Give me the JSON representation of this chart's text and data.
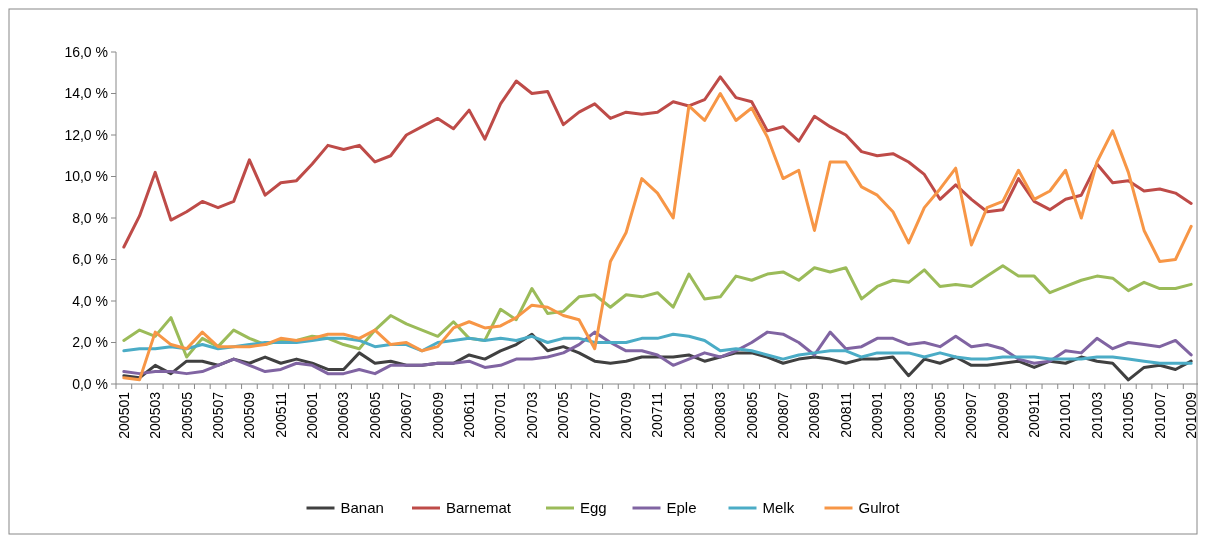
{
  "chart_data": {
    "type": "line",
    "categories": [
      "200501",
      null,
      "200503",
      null,
      "200505",
      null,
      "200507",
      null,
      "200509",
      null,
      "200511",
      null,
      "200601",
      null,
      "200603",
      null,
      "200605",
      null,
      "200607",
      null,
      "200609",
      null,
      "200611",
      null,
      "200701",
      null,
      "200703",
      null,
      "200705",
      null,
      "200707",
      null,
      "200709",
      null,
      "200711",
      null,
      "200801",
      null,
      "200803",
      null,
      "200805",
      null,
      "200807",
      null,
      "200809",
      null,
      "200811",
      null,
      "200901",
      null,
      "200903",
      null,
      "200905",
      null,
      "200907",
      null,
      "200909",
      null,
      "200911",
      null,
      "201001",
      null,
      "201003",
      null,
      "201005",
      null,
      "201007",
      null,
      "201009"
    ],
    "series": [
      {
        "name": "Banan",
        "color": "#404040",
        "values": [
          0.4,
          0.3,
          0.9,
          0.5,
          1.1,
          1.1,
          0.9,
          1.2,
          1.0,
          1.3,
          1.0,
          1.2,
          1.0,
          0.7,
          0.7,
          1.5,
          1.0,
          1.1,
          0.9,
          0.9,
          1.0,
          1.0,
          1.4,
          1.2,
          1.6,
          1.9,
          2.4,
          1.6,
          1.8,
          1.5,
          1.1,
          1.0,
          1.1,
          1.3,
          1.3,
          1.3,
          1.4,
          1.1,
          1.3,
          1.5,
          1.5,
          1.3,
          1.0,
          1.2,
          1.3,
          1.2,
          1.0,
          1.2,
          1.2,
          1.3,
          0.4,
          1.2,
          1.0,
          1.3,
          0.9,
          0.9,
          1.0,
          1.1,
          0.8,
          1.1,
          1.0,
          1.3,
          1.1,
          1.0,
          0.2,
          0.8,
          0.9,
          0.7,
          1.1
        ]
      },
      {
        "name": "Barnemat",
        "color": "#be4b48",
        "values": [
          6.6,
          8.1,
          10.2,
          7.9,
          8.3,
          8.8,
          8.5,
          8.8,
          10.8,
          9.1,
          9.7,
          9.8,
          10.6,
          11.5,
          11.3,
          11.5,
          10.7,
          11.0,
          12.0,
          12.4,
          12.8,
          12.3,
          13.2,
          11.8,
          13.5,
          14.6,
          14.0,
          14.1,
          12.5,
          13.1,
          13.5,
          12.8,
          13.1,
          13.0,
          13.1,
          13.6,
          13.4,
          13.7,
          14.8,
          13.8,
          13.6,
          12.2,
          12.4,
          11.7,
          12.9,
          12.4,
          12.0,
          11.2,
          11.0,
          11.1,
          10.7,
          10.1,
          8.9,
          9.6,
          8.9,
          8.3,
          8.4,
          9.9,
          8.8,
          8.4,
          8.9,
          9.1,
          10.6,
          9.7,
          9.8,
          9.3,
          9.4,
          9.2,
          8.7
        ]
      },
      {
        "name": "Egg",
        "color": "#9bbb59",
        "values": [
          2.1,
          2.6,
          2.3,
          3.2,
          1.3,
          2.2,
          1.8,
          2.6,
          2.2,
          1.9,
          2.1,
          2.1,
          2.3,
          2.2,
          1.9,
          1.7,
          2.6,
          3.3,
          2.9,
          2.6,
          2.3,
          3.0,
          2.2,
          2.1,
          3.6,
          3.1,
          4.6,
          3.4,
          3.5,
          4.2,
          4.3,
          3.7,
          4.3,
          4.2,
          4.4,
          3.7,
          5.3,
          4.1,
          4.2,
          5.2,
          5.0,
          5.3,
          5.4,
          5.0,
          5.6,
          5.4,
          5.6,
          4.1,
          4.7,
          5.0,
          4.9,
          5.5,
          4.7,
          4.8,
          4.7,
          5.2,
          5.7,
          5.2,
          5.2,
          4.4,
          4.7,
          5.0,
          5.2,
          5.1,
          4.5,
          4.9,
          4.6,
          4.6,
          4.8
        ]
      },
      {
        "name": "Eple",
        "color": "#8064a2",
        "values": [
          0.6,
          0.5,
          0.6,
          0.6,
          0.5,
          0.6,
          0.9,
          1.2,
          0.9,
          0.6,
          0.7,
          1.0,
          0.9,
          0.5,
          0.5,
          0.7,
          0.5,
          0.9,
          0.9,
          0.9,
          1.0,
          1.0,
          1.1,
          0.8,
          0.9,
          1.2,
          1.2,
          1.3,
          1.5,
          1.9,
          2.5,
          2.0,
          1.6,
          1.6,
          1.4,
          0.9,
          1.2,
          1.5,
          1.3,
          1.6,
          2.0,
          2.5,
          2.4,
          2.0,
          1.4,
          2.5,
          1.7,
          1.8,
          2.2,
          2.2,
          1.9,
          2.0,
          1.8,
          2.3,
          1.8,
          1.9,
          1.7,
          1.2,
          1.0,
          1.1,
          1.6,
          1.5,
          2.2,
          1.7,
          2.0,
          1.9,
          1.8,
          2.1,
          1.4
        ]
      },
      {
        "name": "Melk",
        "color": "#4bacc6",
        "values": [
          1.6,
          1.7,
          1.7,
          1.8,
          1.7,
          1.9,
          1.7,
          1.8,
          1.9,
          2.0,
          2.0,
          2.0,
          2.1,
          2.2,
          2.2,
          2.1,
          1.8,
          1.9,
          1.9,
          1.6,
          2.0,
          2.1,
          2.2,
          2.1,
          2.2,
          2.1,
          2.3,
          2.0,
          2.2,
          2.2,
          2.0,
          2.0,
          2.0,
          2.2,
          2.2,
          2.4,
          2.3,
          2.1,
          1.6,
          1.7,
          1.6,
          1.4,
          1.2,
          1.4,
          1.5,
          1.6,
          1.6,
          1.3,
          1.5,
          1.5,
          1.5,
          1.3,
          1.5,
          1.3,
          1.2,
          1.2,
          1.3,
          1.3,
          1.3,
          1.2,
          1.2,
          1.2,
          1.3,
          1.3,
          1.2,
          1.1,
          1.0,
          1.0,
          1.0
        ]
      },
      {
        "name": "Gulrot",
        "color": "#f79646",
        "values": [
          0.3,
          0.2,
          2.5,
          1.9,
          1.7,
          2.5,
          1.8,
          1.8,
          1.8,
          1.9,
          2.2,
          2.1,
          2.2,
          2.4,
          2.4,
          2.2,
          2.6,
          1.9,
          2.0,
          1.6,
          1.8,
          2.7,
          3.0,
          2.7,
          2.8,
          3.2,
          3.8,
          3.7,
          3.3,
          3.1,
          1.7,
          5.9,
          7.3,
          9.9,
          9.2,
          8.0,
          13.4,
          12.7,
          14.0,
          12.7,
          13.3,
          11.9,
          9.9,
          10.3,
          7.4,
          10.7,
          10.7,
          9.5,
          9.1,
          8.3,
          6.8,
          8.5,
          9.4,
          10.4,
          6.7,
          8.5,
          8.8,
          10.3,
          8.9,
          9.3,
          10.3,
          8.0,
          10.7,
          12.2,
          10.2,
          7.4,
          5.9,
          6.0,
          7.6
        ]
      }
    ],
    "ylim": [
      0,
      16
    ],
    "yticks": [
      {
        "value": 0,
        "label": "0,0 %"
      },
      {
        "value": 2,
        "label": "2,0 %"
      },
      {
        "value": 4,
        "label": "4,0 %"
      },
      {
        "value": 6,
        "label": "6,0 %"
      },
      {
        "value": 8,
        "label": "8,0 %"
      },
      {
        "value": 10,
        "label": "10,0 %"
      },
      {
        "value": 12,
        "label": "12,0 %"
      },
      {
        "value": 14,
        "label": "14,0 %"
      },
      {
        "value": 16,
        "label": "16,0 %"
      }
    ],
    "legend": "bottom",
    "marker": "none",
    "line_style": "solid"
  }
}
